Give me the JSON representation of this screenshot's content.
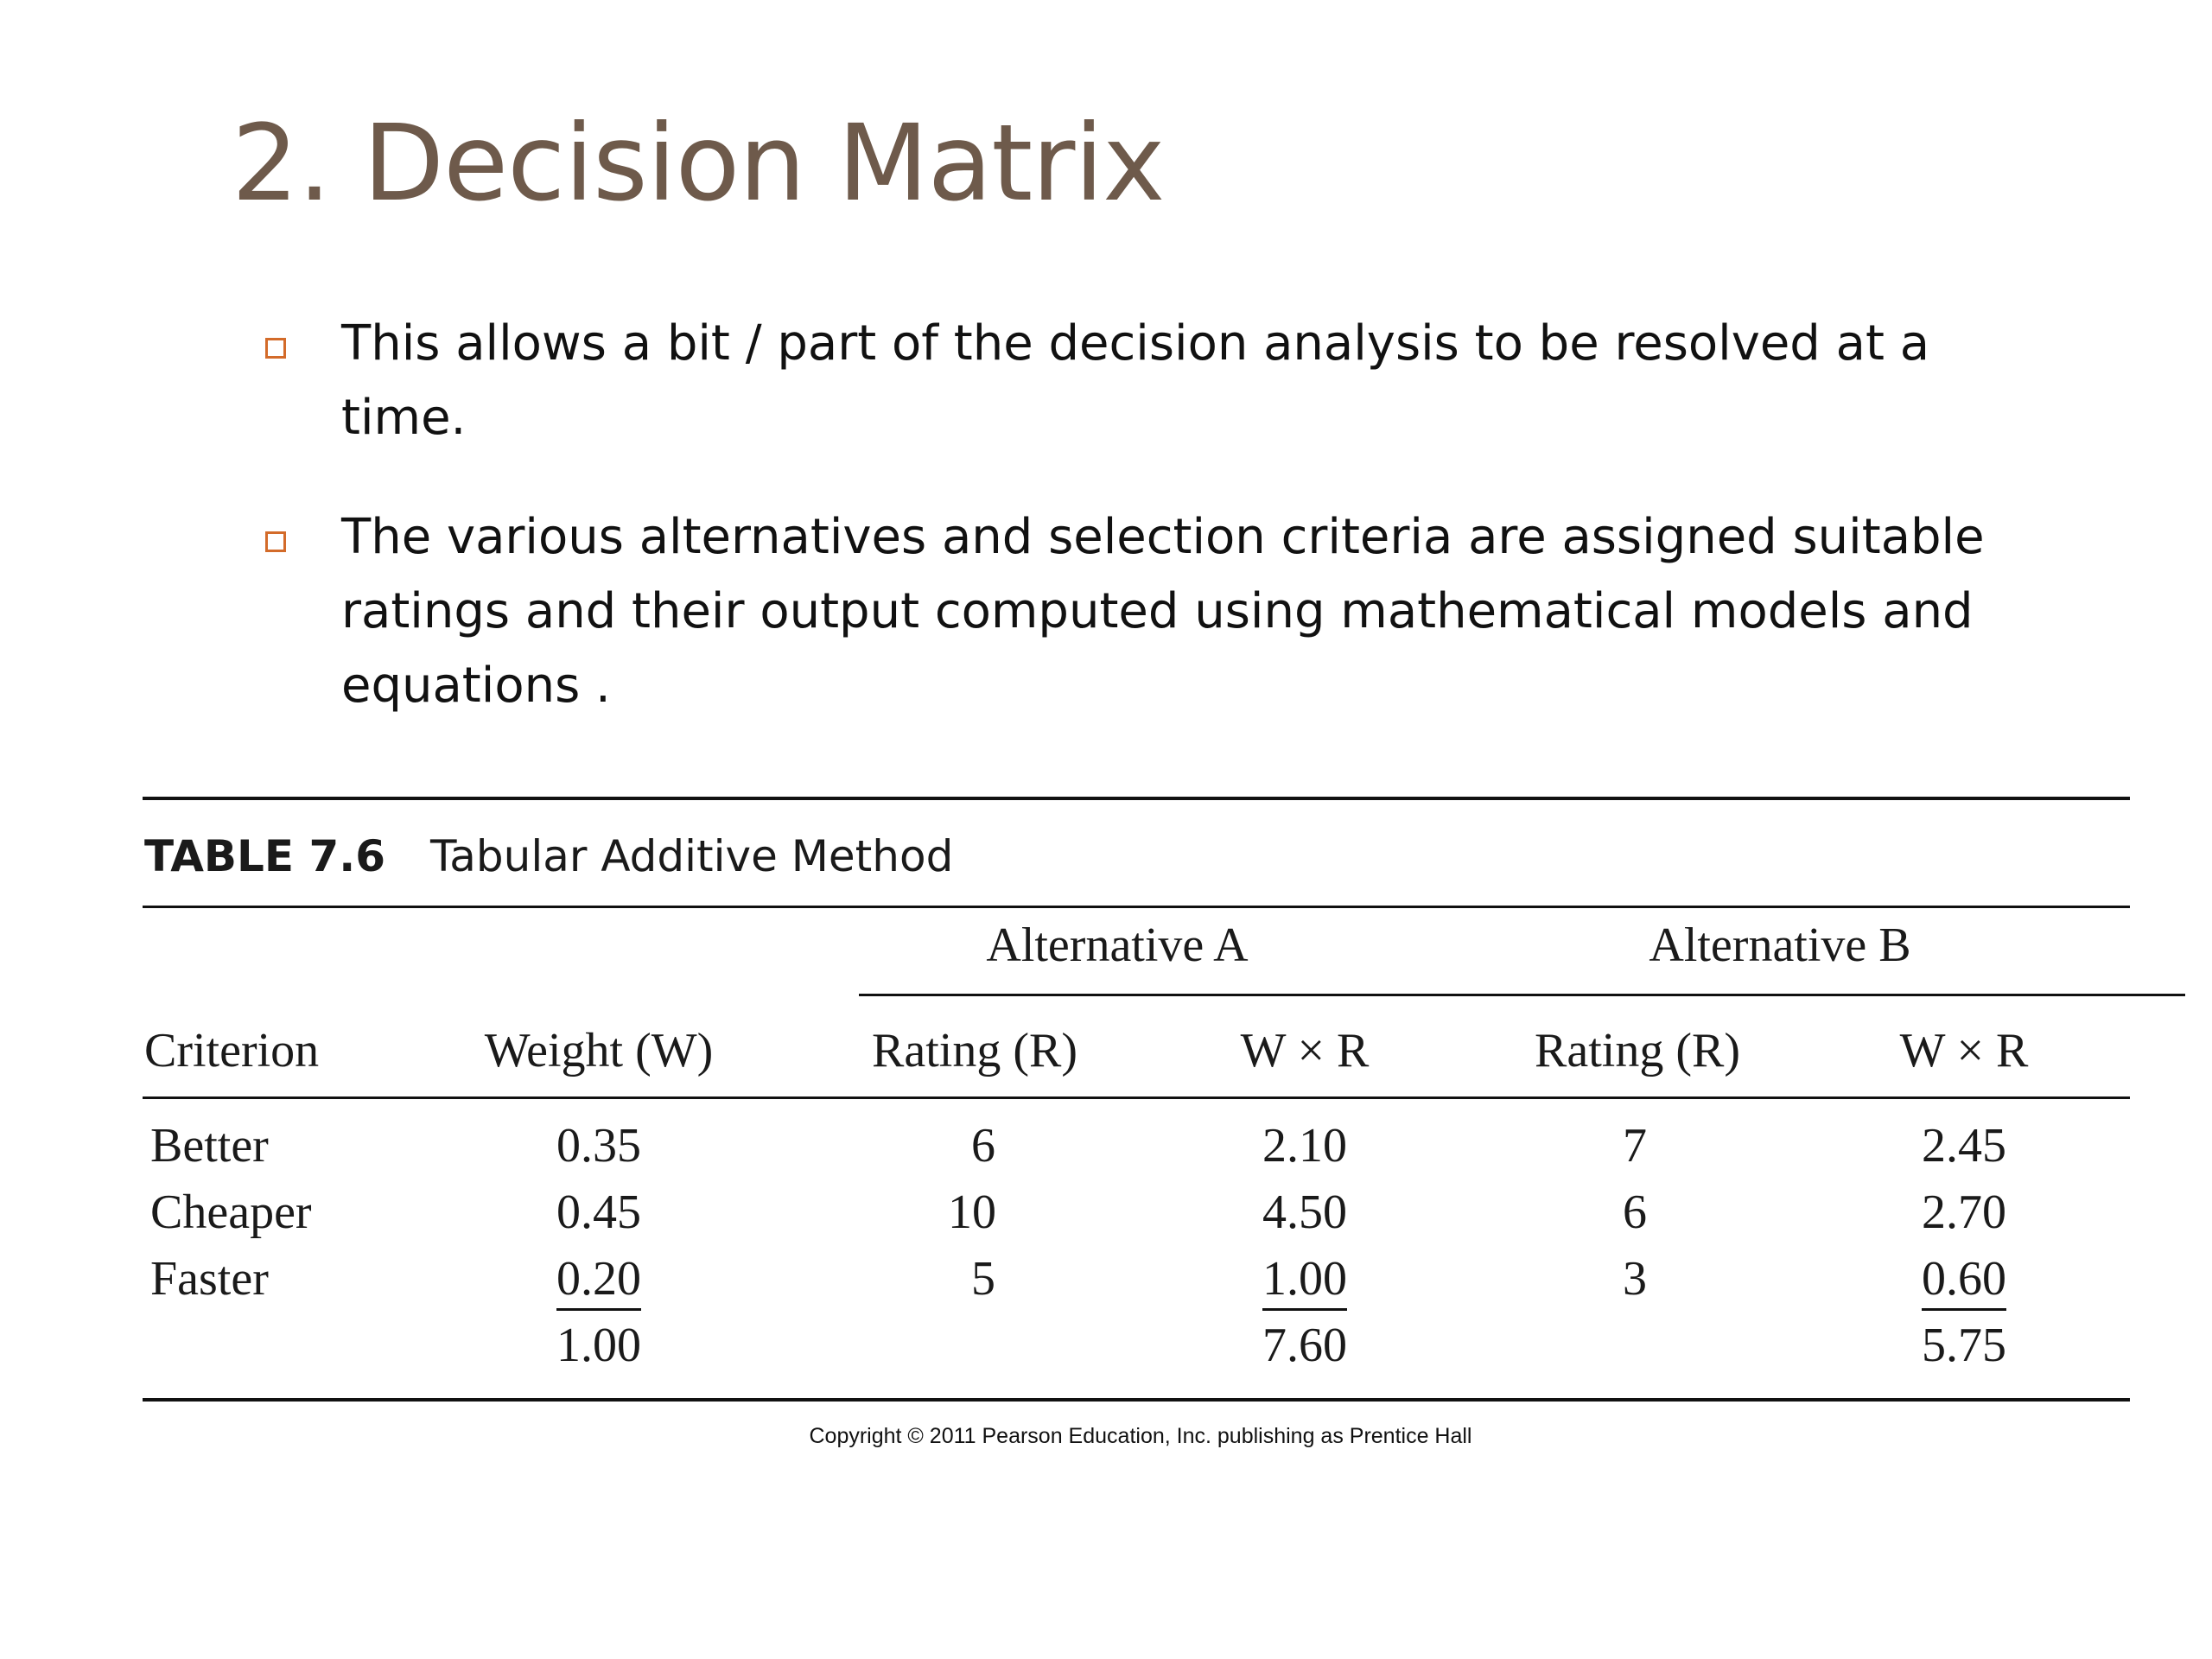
{
  "slide": {
    "title": "2. Decision Matrix",
    "bullets": [
      " This allows a bit / part of the decision analysis to be resolved at a time.",
      "The various alternatives and selection criteria are assigned suitable ratings and their output computed using mathematical models and equations ."
    ]
  },
  "table": {
    "label": "TABLE 7.6",
    "caption": "Tabular Additive Method",
    "group_a": "Alternative A",
    "group_b": "Alternative B",
    "headers": [
      "Criterion",
      "Weight (W)",
      "Rating (R)",
      "W × R",
      "Rating (R)",
      "W × R"
    ],
    "rows": [
      [
        "Better",
        "0.35",
        "6",
        "2.10",
        "7",
        "2.45"
      ],
      [
        "Cheaper",
        "0.45",
        "10",
        "4.50",
        "6",
        "2.70"
      ],
      [
        "Faster",
        "0.20",
        "5",
        "1.00",
        "3",
        "0.60"
      ]
    ],
    "totals": {
      "weight": "1.00",
      "wr_a": "7.60",
      "wr_b": "5.75"
    }
  },
  "copyright": "Copyright © 2011 Pearson Education, Inc. publishing as Prentice Hall",
  "colors": {
    "title": "#6e5a4b",
    "bullet_marker": "#d36b2a"
  }
}
